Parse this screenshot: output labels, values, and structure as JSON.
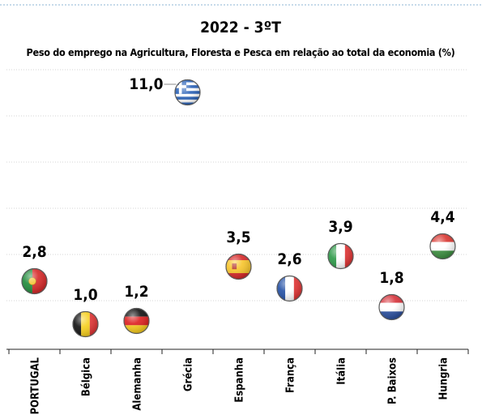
{
  "chart_data": {
    "type": "scatter",
    "title": "2022 - 3ºT",
    "subtitle": "Peso do emprego na Agricultura, Floresta e Pesca em relação ao total da economia (%)",
    "categories": [
      "PORTUGAL",
      "Bélgica",
      "Alemanha",
      "Grécia",
      "Espanha",
      "França",
      "Itália",
      "P. Baixos",
      "Hungria"
    ],
    "values": [
      2.8,
      1.0,
      1.2,
      11.0,
      3.5,
      2.6,
      3.9,
      1.8,
      4.4
    ],
    "value_labels": [
      "2,8",
      "1,0",
      "1,2",
      "11,0",
      "3,5",
      "2,6",
      "3,9",
      "1,8",
      "4,4"
    ],
    "markers": [
      "flag-portugal",
      "flag-belgium",
      "flag-germany",
      "flag-greece",
      "flag-spain",
      "flag-france",
      "flag-italy",
      "flag-netherlands",
      "flag-hungary"
    ],
    "grid": true
  }
}
